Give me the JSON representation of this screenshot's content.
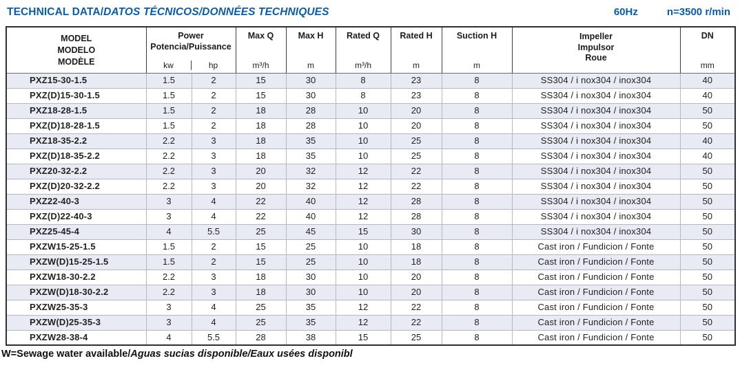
{
  "page": {
    "title_main": "TECHNICAL DATA/",
    "title_i18n": "DATOS TÉCNICOS/DONNÉES TECHNIQUES",
    "frequency": "60Hz",
    "speed": "n=3500 r/min",
    "footer_main": "W=Sewage water available/",
    "footer_i18n": "Aguas sucias disponible/Eaux usées disponibl"
  },
  "table": {
    "header": {
      "model_lines": {
        "en": "MODEL",
        "es": "MODELO",
        "fr": "MODÈLE"
      },
      "power": {
        "label": "Power",
        "sub": "Potencia/Puissance",
        "unit_kw": "kw",
        "unit_hp": "hp"
      },
      "max_q": {
        "label": "Max Q",
        "unit": "m³/h"
      },
      "max_h": {
        "label": "Max H",
        "unit": "m"
      },
      "rated_q": {
        "label": "Rated Q",
        "unit": "m³/h"
      },
      "rated_h": {
        "label": "Rated H",
        "unit": "m"
      },
      "suction_h": {
        "label": "Suction H",
        "unit": "m"
      },
      "impeller": {
        "en": "Impeller",
        "es": "Impulsor",
        "fr": "Roue"
      },
      "dn": {
        "label": "DN",
        "unit": "mm"
      }
    },
    "rows": [
      {
        "model": "PXZ15-30-1.5",
        "kw": "1.5",
        "hp": "2",
        "max_q": "15",
        "max_h": "30",
        "rated_q": "8",
        "rated_h": "23",
        "suction_h": "8",
        "impeller": "SS304 / i nox304 / inox304",
        "dn": "40"
      },
      {
        "model": "PXZ(D)15-30-1.5",
        "kw": "1.5",
        "hp": "2",
        "max_q": "15",
        "max_h": "30",
        "rated_q": "8",
        "rated_h": "23",
        "suction_h": "8",
        "impeller": "SS304 / i nox304 / inox304",
        "dn": "40"
      },
      {
        "model": "PXZ18-28-1.5",
        "kw": "1.5",
        "hp": "2",
        "max_q": "18",
        "max_h": "28",
        "rated_q": "10",
        "rated_h": "20",
        "suction_h": "8",
        "impeller": "SS304 / i nox304 / inox304",
        "dn": "50"
      },
      {
        "model": "PXZ(D)18-28-1.5",
        "kw": "1.5",
        "hp": "2",
        "max_q": "18",
        "max_h": "28",
        "rated_q": "10",
        "rated_h": "20",
        "suction_h": "8",
        "impeller": "SS304 / i nox304 / inox304",
        "dn": "50"
      },
      {
        "model": "PXZ18-35-2.2",
        "kw": "2.2",
        "hp": "3",
        "max_q": "18",
        "max_h": "35",
        "rated_q": "10",
        "rated_h": "25",
        "suction_h": "8",
        "impeller": "SS304 / i nox304 / inox304",
        "dn": "40"
      },
      {
        "model": "PXZ(D)18-35-2.2",
        "kw": "2.2",
        "hp": "3",
        "max_q": "18",
        "max_h": "35",
        "rated_q": "10",
        "rated_h": "25",
        "suction_h": "8",
        "impeller": "SS304 / i nox304 / inox304",
        "dn": "40"
      },
      {
        "model": "PXZ20-32-2.2",
        "kw": "2.2",
        "hp": "3",
        "max_q": "20",
        "max_h": "32",
        "rated_q": "12",
        "rated_h": "22",
        "suction_h": "8",
        "impeller": "SS304 / i nox304 / inox304",
        "dn": "50"
      },
      {
        "model": "PXZ(D)20-32-2.2",
        "kw": "2.2",
        "hp": "3",
        "max_q": "20",
        "max_h": "32",
        "rated_q": "12",
        "rated_h": "22",
        "suction_h": "8",
        "impeller": "SS304 / i nox304 / inox304",
        "dn": "50"
      },
      {
        "model": "PXZ22-40-3",
        "kw": "3",
        "hp": "4",
        "max_q": "22",
        "max_h": "40",
        "rated_q": "12",
        "rated_h": "28",
        "suction_h": "8",
        "impeller": "SS304 / i nox304 / inox304",
        "dn": "50"
      },
      {
        "model": "PXZ(D)22-40-3",
        "kw": "3",
        "hp": "4",
        "max_q": "22",
        "max_h": "40",
        "rated_q": "12",
        "rated_h": "28",
        "suction_h": "8",
        "impeller": "SS304 / i nox304 / inox304",
        "dn": "50"
      },
      {
        "model": "PXZ25-45-4",
        "kw": "4",
        "hp": "5.5",
        "max_q": "25",
        "max_h": "45",
        "rated_q": "15",
        "rated_h": "30",
        "suction_h": "8",
        "impeller": "SS304 / i nox304 / inox304",
        "dn": "50"
      },
      {
        "model": "PXZW15-25-1.5",
        "kw": "1.5",
        "hp": "2",
        "max_q": "15",
        "max_h": "25",
        "rated_q": "10",
        "rated_h": "18",
        "suction_h": "8",
        "impeller": "Cast iron / Fundicion / Fonte",
        "dn": "50"
      },
      {
        "model": "PXZW(D)15-25-1.5",
        "kw": "1.5",
        "hp": "2",
        "max_q": "15",
        "max_h": "25",
        "rated_q": "10",
        "rated_h": "18",
        "suction_h": "8",
        "impeller": "Cast iron / Fundicion / Fonte",
        "dn": "50"
      },
      {
        "model": "PXZW18-30-2.2",
        "kw": "2.2",
        "hp": "3",
        "max_q": "18",
        "max_h": "30",
        "rated_q": "10",
        "rated_h": "20",
        "suction_h": "8",
        "impeller": "Cast iron / Fundicion / Fonte",
        "dn": "50"
      },
      {
        "model": "PXZW(D)18-30-2.2",
        "kw": "2.2",
        "hp": "3",
        "max_q": "18",
        "max_h": "30",
        "rated_q": "10",
        "rated_h": "20",
        "suction_h": "8",
        "impeller": "Cast iron / Fundicion / Fonte",
        "dn": "50"
      },
      {
        "model": "PXZW25-35-3",
        "kw": "3",
        "hp": "4",
        "max_q": "25",
        "max_h": "35",
        "rated_q": "12",
        "rated_h": "22",
        "suction_h": "8",
        "impeller": "Cast iron / Fundicion / Fonte",
        "dn": "50"
      },
      {
        "model": "PXZW(D)25-35-3",
        "kw": "3",
        "hp": "4",
        "max_q": "25",
        "max_h": "35",
        "rated_q": "12",
        "rated_h": "22",
        "suction_h": "8",
        "impeller": "Cast iron / Fundicion / Fonte",
        "dn": "50"
      },
      {
        "model": "PXZW28-38-4",
        "kw": "4",
        "hp": "5.5",
        "max_q": "28",
        "max_h": "38",
        "rated_q": "15",
        "rated_h": "25",
        "suction_h": "8",
        "impeller": "Cast iron / Fundicion / Fonte",
        "dn": "50"
      }
    ],
    "colors": {
      "title_blue": "#0b5ca8",
      "row_stripe": "#e8ebf4",
      "grid_line": "#b3b8c4",
      "outer_border": "#2e2e2e"
    }
  }
}
